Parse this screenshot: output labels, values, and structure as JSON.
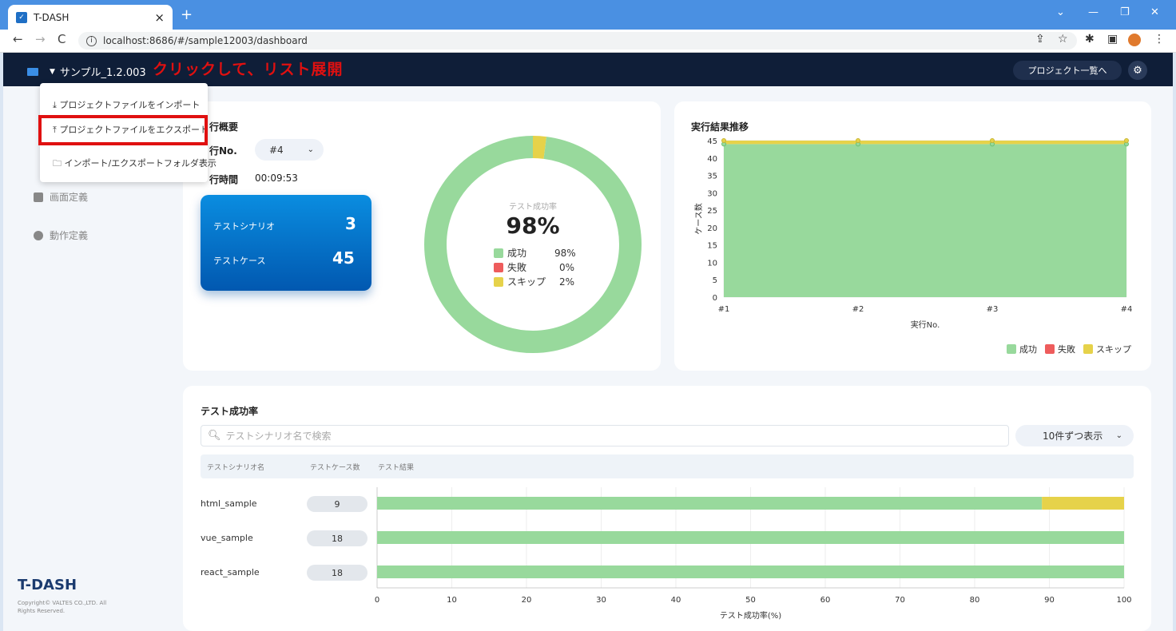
{
  "browser": {
    "tab_title": "T-DASH",
    "url": "localhost:8686/#/sample12003/dashboard"
  },
  "header": {
    "project_name": "サンプル_1.2.003",
    "annotation": "クリックして、リスト展開",
    "project_list_button": "プロジェクト一覧へ"
  },
  "dropdown": {
    "items": [
      "プロジェクトファイルをインポート",
      "プロジェクトファイルをエクスポート",
      "インポート/エクスポートフォルダ表示"
    ]
  },
  "sidebar": {
    "items": [
      "画面定義",
      "動作定義"
    ],
    "logo": "T-DASH",
    "copyright": "Copyright© VALTES CO.,LTD. All Rights Reserved."
  },
  "summary": {
    "title": "行概要",
    "run_no_label": "行No.",
    "run_no_value": "#4",
    "time_label": "行時間",
    "time_value": "00:09:53",
    "scenario_label": "テストシナリオ",
    "scenario_count": "3",
    "case_label": "テストケース",
    "case_count": "45"
  },
  "donut": {
    "caption": "テスト成功率",
    "value": "98%",
    "legend": [
      {
        "label": "成功",
        "pct": "98%",
        "color": "#98d99c"
      },
      {
        "label": "失敗",
        "pct": "0%",
        "color": "#ee5c5c"
      },
      {
        "label": "スキップ",
        "pct": "2%",
        "color": "#e6d24a"
      }
    ],
    "success": 98,
    "fail": 0,
    "skip": 2
  },
  "trend": {
    "title": "実行結果推移",
    "ylabel": "ケース数",
    "xlabel": "実行No.",
    "legend": [
      "成功",
      "失敗",
      "スキップ"
    ]
  },
  "rate": {
    "title": "テスト成功率",
    "search_placeholder": "テストシナリオ名で検索",
    "per_page": "10件ずつ表示",
    "columns": [
      "テストシナリオ名",
      "テストケース数",
      "テスト結果"
    ],
    "rows": [
      {
        "name": "html_sample",
        "count": "9"
      },
      {
        "name": "vue_sample",
        "count": "18"
      },
      {
        "name": "react_sample",
        "count": "18"
      }
    ],
    "xlabel": "テスト成功率(%)"
  },
  "chart_data": [
    {
      "type": "area",
      "title": "実行結果推移",
      "x": [
        "#1",
        "#2",
        "#3",
        "#4"
      ],
      "xlabel": "実行No.",
      "ylabel": "ケース数",
      "ylim": [
        0,
        45
      ],
      "yticks": [
        0,
        5,
        10,
        15,
        20,
        25,
        30,
        35,
        40,
        45
      ],
      "series": [
        {
          "name": "成功",
          "values": [
            44,
            44,
            44,
            44
          ],
          "color": "#98d99c"
        },
        {
          "name": "失敗",
          "values": [
            0,
            0,
            0,
            0
          ],
          "color": "#ee5c5c"
        },
        {
          "name": "スキップ",
          "values": [
            1,
            1,
            1,
            1
          ],
          "color": "#e6d24a"
        }
      ],
      "legend": "bottom-right"
    },
    {
      "type": "bar",
      "title": "テスト成功率",
      "categories": [
        "html_sample",
        "vue_sample",
        "react_sample"
      ],
      "xlabel": "テスト成功率(%)",
      "xlim": [
        0,
        100
      ],
      "xticks": [
        0,
        10,
        20,
        30,
        40,
        50,
        60,
        70,
        80,
        90,
        100
      ],
      "series": [
        {
          "name": "成功",
          "values": [
            89,
            100,
            100
          ],
          "color": "#98d99c"
        },
        {
          "name": "スキップ",
          "values": [
            11,
            0,
            0
          ],
          "color": "#e6d24a"
        }
      ]
    }
  ]
}
